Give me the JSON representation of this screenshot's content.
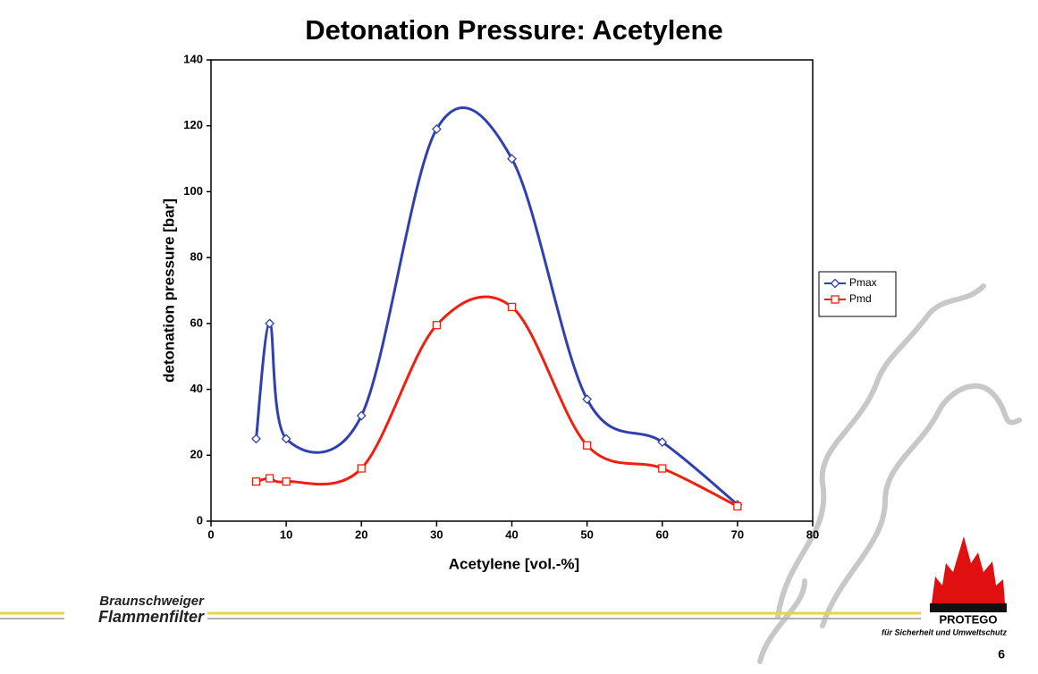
{
  "chart_data": {
    "type": "line",
    "title": "Detonation Pressure: Acetylene",
    "xlabel": "Acetylene [vol.-%]",
    "ylabel": "detonation pressure [bar]",
    "x": [
      6,
      7.8,
      10,
      20,
      30,
      40,
      50,
      60,
      70
    ],
    "series": [
      {
        "name": "Pmax",
        "color": "#3040b0",
        "marker": "diamond",
        "values": [
          25,
          60,
          25,
          32,
          119,
          110,
          37,
          24,
          5
        ]
      },
      {
        "name": "Pmd",
        "color": "#f02010",
        "marker": "square",
        "values": [
          12,
          13,
          12,
          16,
          59.5,
          65,
          23,
          16,
          4.5
        ]
      }
    ],
    "xlim": [
      0,
      80
    ],
    "xticks": [
      0,
      10,
      20,
      30,
      40,
      50,
      60,
      70,
      80
    ],
    "ylim": [
      0,
      140
    ],
    "yticks": [
      0,
      20,
      40,
      60,
      80,
      100,
      120,
      140
    ],
    "legend": "right",
    "smooth": true
  },
  "footer": {
    "company_line1": "Braunschweiger",
    "company_line2": "Flammenfilter",
    "logo": "PROTEGO",
    "slogan": "für Sicherheit und Umweltschutz",
    "page": "6"
  }
}
